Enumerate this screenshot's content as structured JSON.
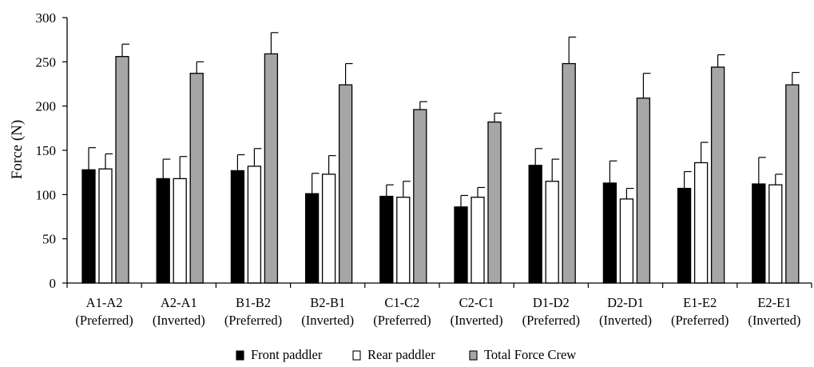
{
  "chart_data": {
    "type": "bar",
    "title": "",
    "xlabel": "",
    "ylabel": "Force (N)",
    "ylim": [
      0,
      300
    ],
    "yticks": [
      0,
      50,
      100,
      150,
      200,
      250,
      300
    ],
    "grid": false,
    "legend_position": "bottom",
    "categories": [
      [
        "A1-A2",
        "(Preferred)"
      ],
      [
        "A2-A1",
        "(Inverted)"
      ],
      [
        "B1-B2",
        "(Preferred)"
      ],
      [
        "B2-B1",
        "(Inverted)"
      ],
      [
        "C1-C2",
        "(Preferred)"
      ],
      [
        "C2-C1",
        "(Inverted)"
      ],
      [
        "D1-D2",
        "(Preferred)"
      ],
      [
        "D2-D1",
        "(Inverted)"
      ],
      [
        "E1-E2",
        "(Preferred)"
      ],
      [
        "E2-E1",
        "(Inverted)"
      ]
    ],
    "series": [
      {
        "name": "Front paddler",
        "color": "#000000",
        "values": [
          128,
          118,
          127,
          101,
          98,
          86,
          133,
          113,
          107,
          112
        ],
        "errors": [
          25,
          22,
          18,
          23,
          13,
          13,
          19,
          25,
          19,
          30
        ]
      },
      {
        "name": "Rear paddler",
        "color": "#ffffff",
        "values": [
          129,
          118,
          132,
          123,
          97,
          97,
          115,
          95,
          136,
          111
        ],
        "errors": [
          17,
          25,
          20,
          21,
          18,
          11,
          25,
          12,
          23,
          12
        ]
      },
      {
        "name": "Total Force Crew",
        "color": "#a6a6a6",
        "values": [
          256,
          237,
          259,
          224,
          196,
          182,
          248,
          209,
          244,
          224
        ],
        "errors": [
          14,
          13,
          24,
          24,
          9,
          10,
          30,
          28,
          14,
          14
        ]
      }
    ]
  }
}
